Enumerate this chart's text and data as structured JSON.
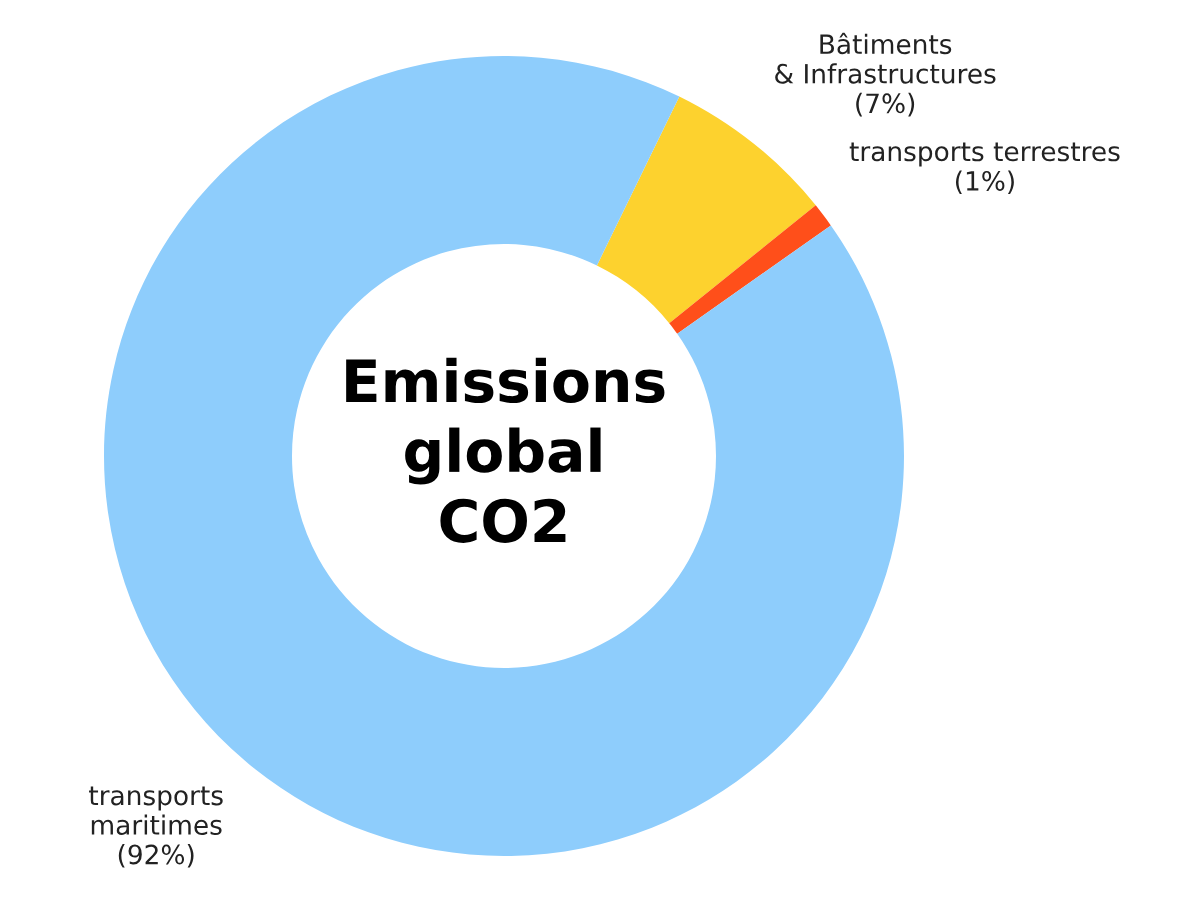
{
  "chart_data": {
    "type": "donut",
    "title": "Emissions\nglobal\nCO2",
    "categories": [
      "Bâtiments\n& Infrastructures",
      "transports terrestres",
      "transports\nmaritimes"
    ],
    "values": [
      7,
      1,
      92
    ],
    "value_labels": [
      "(7%)",
      "(1%)",
      "(92%)"
    ],
    "colors": [
      "#fdd22e",
      "#ff4f1a",
      "#8ecdfc"
    ],
    "legend": false
  }
}
